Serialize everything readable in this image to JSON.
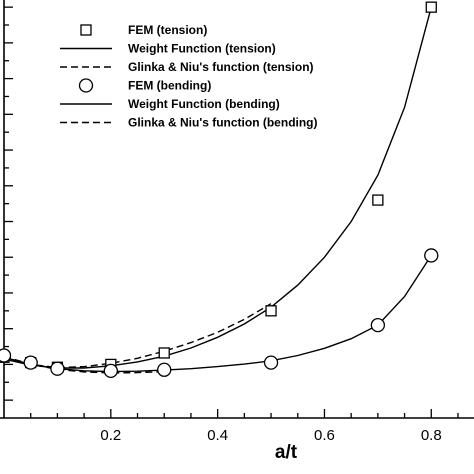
{
  "chart_data": {
    "type": "line",
    "xlabel": "a/t",
    "ylabel": "",
    "xlim": [
      0.0,
      0.88
    ],
    "ylim": [
      0.45,
      1.62
    ],
    "x_ticks": [
      0.2,
      0.4,
      0.6,
      0.8
    ],
    "x_tick_labels": [
      "0.2",
      "0.4",
      "0.6",
      "0.8"
    ],
    "grid": false,
    "legend_position": "top-left",
    "series": [
      {
        "name": "FEM (tension)",
        "style": "markers",
        "marker": "square",
        "x": [
          0.0,
          0.05,
          0.1,
          0.2,
          0.3,
          0.5,
          0.7,
          0.8
        ],
        "y": [
          0.62,
          0.605,
          0.592,
          0.6,
          0.632,
          0.75,
          1.06,
          1.6
        ]
      },
      {
        "name": "Weight Function (tension)",
        "style": "solid",
        "x": [
          0.0,
          0.05,
          0.1,
          0.15,
          0.2,
          0.25,
          0.3,
          0.35,
          0.4,
          0.45,
          0.5,
          0.55,
          0.6,
          0.65,
          0.7,
          0.75,
          0.8
        ],
        "y": [
          0.615,
          0.598,
          0.59,
          0.59,
          0.596,
          0.607,
          0.623,
          0.646,
          0.676,
          0.713,
          0.76,
          0.822,
          0.9,
          1.0,
          1.13,
          1.32,
          1.6
        ]
      },
      {
        "name": "Glinka & Niu's function (tension)",
        "style": "dashed",
        "x": [
          0.0,
          0.05,
          0.1,
          0.15,
          0.2,
          0.25,
          0.3,
          0.35,
          0.4,
          0.45,
          0.5
        ],
        "y": [
          0.62,
          0.6,
          0.591,
          0.594,
          0.603,
          0.617,
          0.637,
          0.661,
          0.69,
          0.726,
          0.77
        ]
      },
      {
        "name": "FEM (bending)",
        "style": "markers",
        "marker": "circle",
        "x": [
          0.0,
          0.05,
          0.1,
          0.2,
          0.3,
          0.5,
          0.7,
          0.8
        ],
        "y": [
          0.625,
          0.605,
          0.588,
          0.582,
          0.585,
          0.605,
          0.71,
          0.905
        ]
      },
      {
        "name": "Weight Function (bending)",
        "style": "solid",
        "x": [
          0.0,
          0.05,
          0.1,
          0.15,
          0.2,
          0.25,
          0.3,
          0.35,
          0.4,
          0.45,
          0.5,
          0.55,
          0.6,
          0.65,
          0.7,
          0.75,
          0.8
        ],
        "y": [
          0.62,
          0.6,
          0.588,
          0.582,
          0.58,
          0.581,
          0.584,
          0.588,
          0.594,
          0.601,
          0.61,
          0.625,
          0.645,
          0.672,
          0.71,
          0.79,
          0.905
        ]
      },
      {
        "name": "Glinka & Niu's function (bending)",
        "style": "dashed",
        "x": [
          0.0,
          0.05,
          0.1,
          0.15,
          0.2,
          0.25,
          0.3
        ],
        "y": [
          0.622,
          0.601,
          0.586,
          0.579,
          0.576,
          0.577,
          0.58
        ]
      }
    ]
  }
}
